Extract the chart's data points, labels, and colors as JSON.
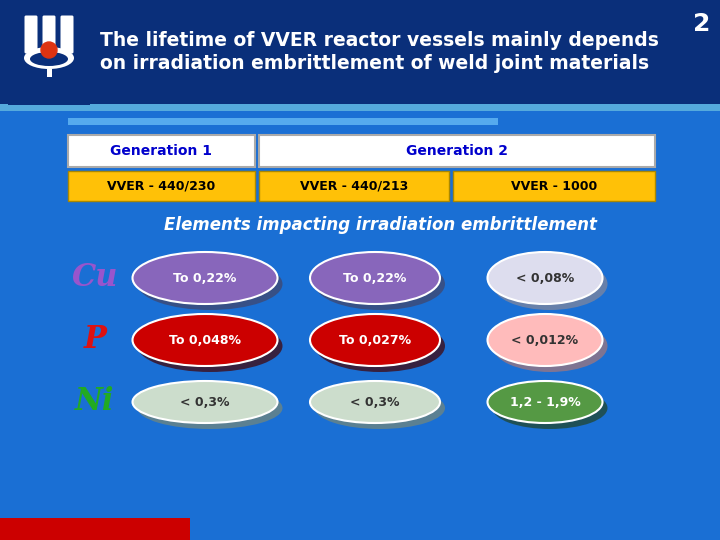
{
  "bg_dark_color": "#0A2F7A",
  "bg_main_color": "#1560BD",
  "bg_body_color": "#1A6FD4",
  "title_text": "The lifetime of VVER reactor vessels mainly depends\non irradiation embrittlement of weld joint materials",
  "title_color": "#FFFFFF",
  "slide_number": "2",
  "gen1_label": "Generation 1",
  "gen2_label": "Generation 2",
  "gen_label_color": "#0000CC",
  "gen_box_bg": "#FFFFFF",
  "vver_labels": [
    "VVER - 440/230",
    "VVER - 440/213",
    "VVER - 1000"
  ],
  "vver_box_color": "#FFC107",
  "vver_text_color": "#000000",
  "subtitle": "Elements impacting irradiation embrittlement",
  "subtitle_color": "#FFFFFF",
  "elements": [
    "Cu",
    "P",
    "Ni"
  ],
  "row_labels_colors": [
    "#9955CC",
    "#DD1111",
    "#22AA22"
  ],
  "ellipses": [
    [
      "To 0,22%",
      "To 0,22%",
      "< 0,08%"
    ],
    [
      "To 0,048%",
      "To 0,027%",
      "< 0,012%"
    ],
    [
      "< 0,3%",
      "< 0,3%",
      "1,2 - 1,9%"
    ]
  ],
  "ellipse_colors": [
    [
      "#8866BB",
      "#8866BB",
      "#DDDDEE"
    ],
    [
      "#CC0000",
      "#CC0000",
      "#FFBBBB"
    ],
    [
      "#CCDDCC",
      "#CCDDCC",
      "#559944"
    ]
  ],
  "ellipse_shadow_colors": [
    [
      "#444466",
      "#444466",
      "#888899"
    ],
    [
      "#440000",
      "#440000",
      "#AA7777"
    ],
    [
      "#778877",
      "#778877",
      "#224422"
    ]
  ],
  "ellipse_text_colors": [
    [
      "#FFFFFF",
      "#FFFFFF",
      "#333333"
    ],
    [
      "#FFFFFF",
      "#FFFFFF",
      "#333333"
    ],
    [
      "#333333",
      "#333333",
      "#FFFFFF"
    ]
  ],
  "header_stripe_color": "#55AADD",
  "bottom_bar_color": "#CC0000",
  "accent_bar_color": "#55AAEE"
}
